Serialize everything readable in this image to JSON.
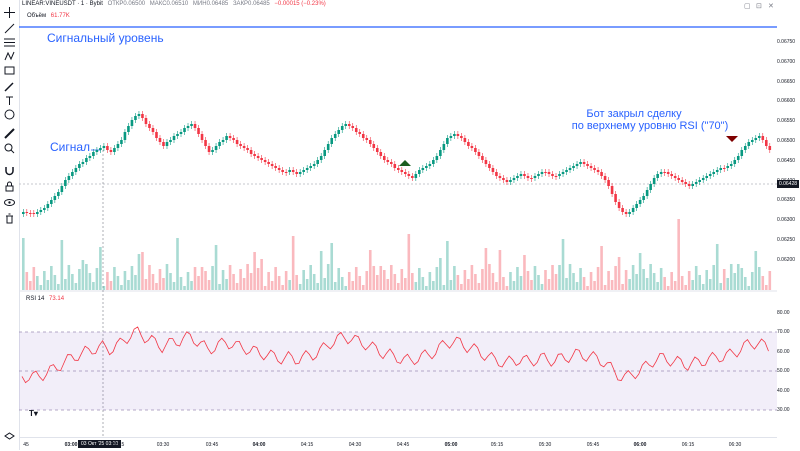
{
  "header": {
    "symbol": "LINEAR:VINEUSDT · 1 · Bybit",
    "o": "ОТКР0.06500",
    "h": "МАКС0.06510",
    "l": "МИН0.06485",
    "c": "ЗАКР0.06485",
    "change": "−0.00015 (−0.23%)"
  },
  "volume": {
    "label": "Объём",
    "value": "61.77K"
  },
  "rsi": {
    "label": "RSI 14",
    "value": "73.14"
  },
  "annotations": {
    "signal_level": "Сигнальный уровень",
    "signal": "Сигнал",
    "bot_line1": "Бот закрыл сделку",
    "bot_line2": "по верхнему уровню RSI (\"70\")"
  },
  "price_axis": [
    "0.06750",
    "0.06700",
    "0.06650",
    "0.06600",
    "0.06550",
    "0.06500",
    "0.06450",
    "0.06400",
    "0.06350",
    "0.06300",
    "0.06250",
    "0.06200"
  ],
  "current_price": "0.06428",
  "rsi_axis": [
    "80.00",
    "70.00",
    "60.00",
    "50.00",
    "40.00",
    "30.00"
  ],
  "time_axis": [
    "45",
    "03:00",
    "03:15",
    "03:30",
    "03:45",
    "04:00",
    "04:15",
    "04:30",
    "04:45",
    "05:00",
    "05:15",
    "05:30",
    "05:45",
    "06:00",
    "06:15",
    "06:30"
  ],
  "crosshair_date": "03 Окт '25  03:10",
  "colors": {
    "up": "#089981",
    "down": "#f23645",
    "accent": "#2962ff",
    "rsi_band": "#7e57c2"
  },
  "toolbar_icons": [
    "crosshair-icon",
    "trend-line-icon",
    "fib-icon",
    "pattern-icon",
    "projection-icon",
    "brush-icon",
    "text-icon",
    "emoji-icon",
    "ruler-icon",
    "zoom-icon",
    "magnet-icon",
    "lock-icon",
    "eye-icon",
    "trash-icon",
    "layers-icon"
  ],
  "window_controls": [
    "fullscreen-icon",
    "maximize-icon",
    "close-icon"
  ]
}
